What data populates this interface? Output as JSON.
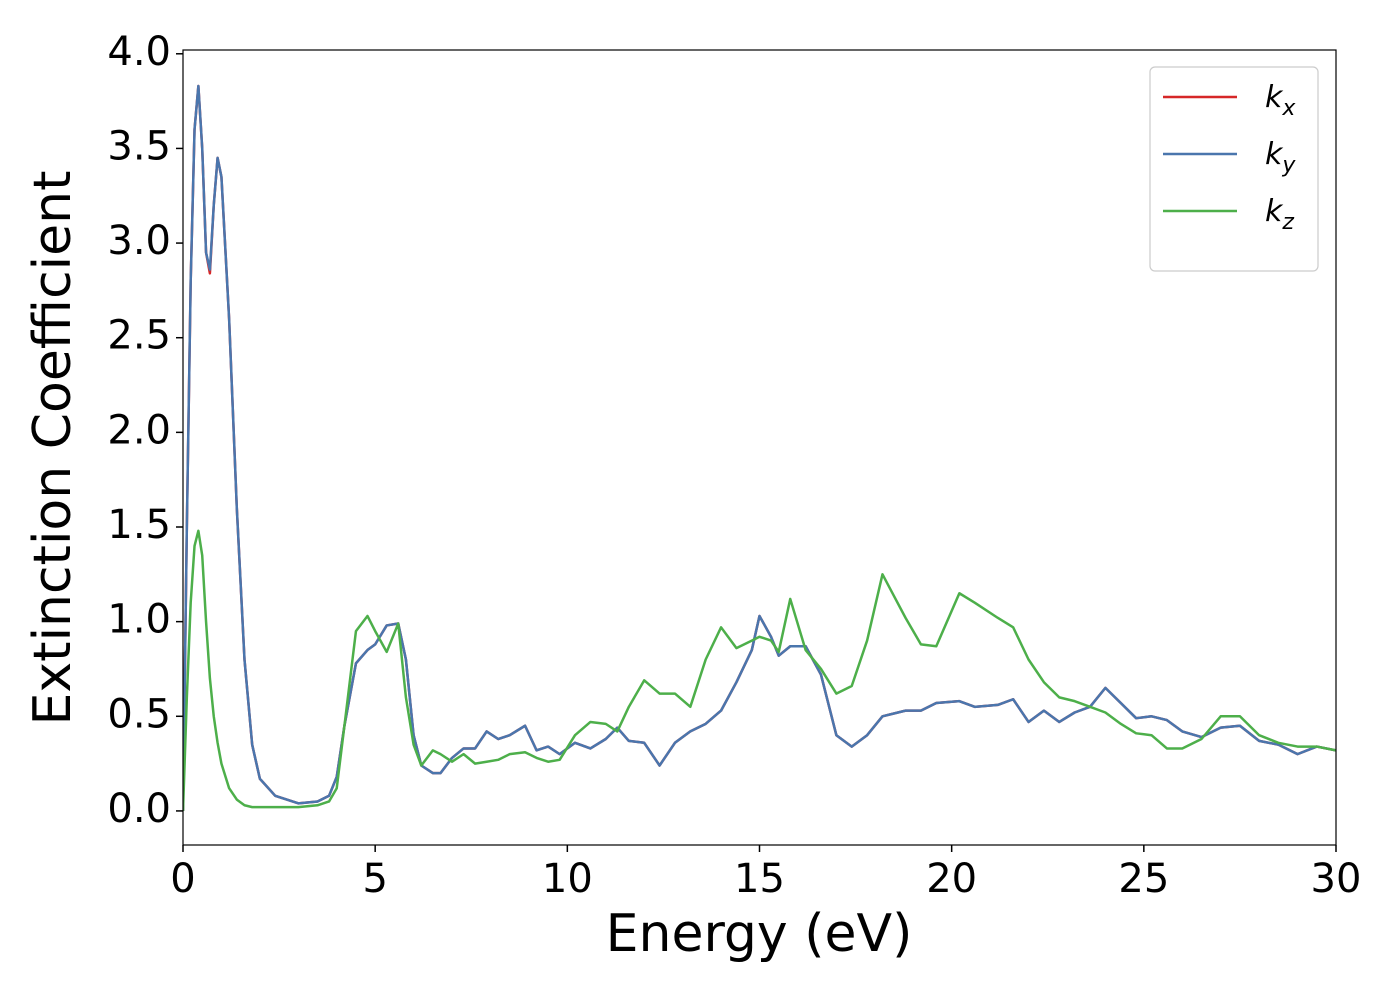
{
  "chart_data": {
    "type": "line",
    "xlabel": "Energy (eV)",
    "ylabel": "Extinction Coefficient",
    "xlim": [
      0,
      30
    ],
    "ylim": [
      -0.18,
      4.02
    ],
    "xticks": [
      0,
      5,
      10,
      15,
      20,
      25,
      30
    ],
    "yticks": [
      {
        "value": 0,
        "label": "0.0"
      },
      0.5,
      {
        "value": 1,
        "label": "1.0"
      },
      1.5,
      {
        "value": 2,
        "label": "2.0"
      },
      2.5,
      {
        "value": 3,
        "label": "3.0"
      },
      3.5,
      {
        "value": 4,
        "label": "4.0"
      }
    ],
    "legend": "upper right",
    "x": [
      0,
      0.1,
      0.2,
      0.3,
      0.4,
      0.5,
      0.6,
      0.7,
      0.8,
      0.9,
      1.0,
      1.2,
      1.4,
      1.6,
      1.8,
      2.0,
      2.4,
      3.0,
      3.5,
      3.8,
      4.0,
      4.2,
      4.5,
      4.8,
      5.0,
      5.3,
      5.6,
      5.8,
      6.0,
      6.2,
      6.5,
      6.7,
      7.0,
      7.3,
      7.6,
      7.9,
      8.2,
      8.5,
      8.9,
      9.2,
      9.5,
      9.8,
      10.2,
      10.6,
      11.0,
      11.3,
      11.6,
      12.0,
      12.4,
      12.8,
      13.2,
      13.6,
      14.0,
      14.4,
      14.8,
      15.0,
      15.3,
      15.5,
      15.8,
      16.2,
      16.6,
      17.0,
      17.4,
      17.8,
      18.2,
      18.8,
      19.2,
      19.6,
      20.2,
      20.6,
      21.2,
      21.6,
      22.0,
      22.4,
      22.8,
      23.2,
      23.6,
      24.0,
      24.4,
      24.8,
      25.2,
      25.6,
      26.0,
      26.5,
      27.0,
      27.5,
      28.0,
      28.5,
      29.0,
      29.5,
      30
    ],
    "series": [
      {
        "name": "kx",
        "color": "#d62728",
        "values": [
          0,
          1.5,
          2.8,
          3.6,
          3.83,
          3.5,
          2.95,
          2.84,
          3.2,
          3.45,
          3.35,
          2.6,
          1.6,
          0.8,
          0.35,
          0.17,
          0.08,
          0.04,
          0.05,
          0.08,
          0.18,
          0.45,
          0.78,
          0.85,
          0.88,
          0.98,
          0.99,
          0.8,
          0.4,
          0.24,
          0.2,
          0.2,
          0.28,
          0.33,
          0.33,
          0.42,
          0.38,
          0.4,
          0.45,
          0.32,
          0.34,
          0.3,
          0.36,
          0.33,
          0.38,
          0.44,
          0.37,
          0.36,
          0.24,
          0.36,
          0.42,
          0.46,
          0.53,
          0.68,
          0.85,
          1.03,
          0.92,
          0.82,
          0.87,
          0.87,
          0.72,
          0.4,
          0.34,
          0.4,
          0.5,
          0.53,
          0.53,
          0.57,
          0.58,
          0.55,
          0.56,
          0.59,
          0.47,
          0.53,
          0.47,
          0.52,
          0.55,
          0.65,
          0.57,
          0.49,
          0.5,
          0.48,
          0.42,
          0.39,
          0.44,
          0.45,
          0.37,
          0.35,
          0.3,
          0.34,
          0.32
        ]
      },
      {
        "name": "ky",
        "color": "#4a76ad",
        "values": [
          0,
          1.5,
          2.8,
          3.6,
          3.83,
          3.5,
          2.95,
          2.86,
          3.2,
          3.45,
          3.35,
          2.6,
          1.6,
          0.8,
          0.35,
          0.17,
          0.08,
          0.04,
          0.05,
          0.08,
          0.18,
          0.45,
          0.78,
          0.85,
          0.88,
          0.98,
          0.99,
          0.8,
          0.4,
          0.24,
          0.2,
          0.2,
          0.28,
          0.33,
          0.33,
          0.42,
          0.38,
          0.4,
          0.45,
          0.32,
          0.34,
          0.3,
          0.36,
          0.33,
          0.38,
          0.44,
          0.37,
          0.36,
          0.24,
          0.36,
          0.42,
          0.46,
          0.53,
          0.68,
          0.85,
          1.03,
          0.92,
          0.82,
          0.87,
          0.87,
          0.72,
          0.4,
          0.34,
          0.4,
          0.5,
          0.53,
          0.53,
          0.57,
          0.58,
          0.55,
          0.56,
          0.59,
          0.47,
          0.53,
          0.47,
          0.52,
          0.55,
          0.65,
          0.57,
          0.49,
          0.5,
          0.48,
          0.42,
          0.39,
          0.44,
          0.45,
          0.37,
          0.35,
          0.3,
          0.34,
          0.32
        ]
      },
      {
        "name": "kz",
        "color": "#4daf4a",
        "values": [
          0,
          0.6,
          1.1,
          1.4,
          1.48,
          1.35,
          1.0,
          0.7,
          0.5,
          0.36,
          0.25,
          0.12,
          0.06,
          0.03,
          0.02,
          0.02,
          0.02,
          0.02,
          0.03,
          0.05,
          0.12,
          0.45,
          0.95,
          1.03,
          0.95,
          0.84,
          0.99,
          0.6,
          0.35,
          0.24,
          0.32,
          0.3,
          0.26,
          0.3,
          0.25,
          0.26,
          0.27,
          0.3,
          0.31,
          0.28,
          0.26,
          0.27,
          0.4,
          0.47,
          0.46,
          0.42,
          0.55,
          0.69,
          0.62,
          0.62,
          0.55,
          0.8,
          0.97,
          0.86,
          0.9,
          0.92,
          0.9,
          0.84,
          1.12,
          0.85,
          0.75,
          0.62,
          0.66,
          0.9,
          1.25,
          1.02,
          0.88,
          0.87,
          1.15,
          1.1,
          1.02,
          0.97,
          0.8,
          0.68,
          0.6,
          0.58,
          0.55,
          0.52,
          0.46,
          0.41,
          0.4,
          0.33,
          0.33,
          0.38,
          0.5,
          0.5,
          0.4,
          0.36,
          0.34,
          0.34,
          0.32
        ]
      }
    ]
  }
}
